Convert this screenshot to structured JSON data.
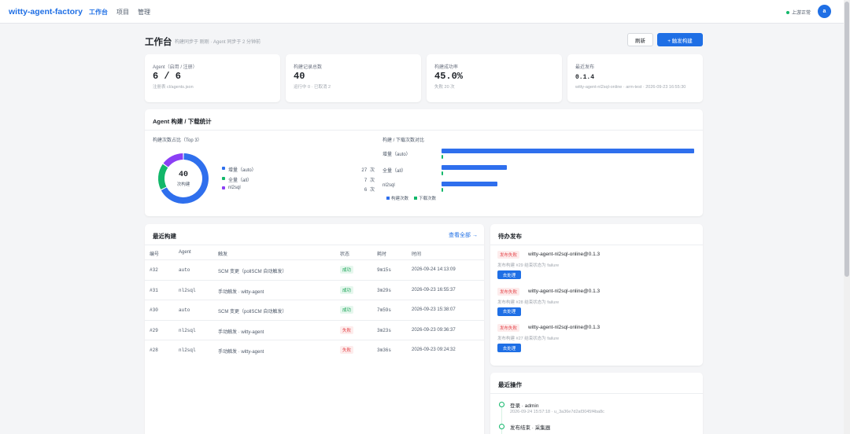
{
  "topbar": {
    "brand": "witty-agent-factory",
    "nav": [
      "工作台",
      "项目",
      "管理"
    ],
    "upstream_status": "上游正常",
    "avatar_letter": "a"
  },
  "header": {
    "title": "工作台",
    "subtitle": "构建同步于 刚刚 · Agent 同步于 2 分钟前",
    "refresh_label": "刷新",
    "trigger_label": "+ 触发构建"
  },
  "stats": [
    {
      "label": "Agent（启用 / 注册）",
      "value": "6 / 6",
      "sub": "注册表 cl/agents.json"
    },
    {
      "label": "构建记录总数",
      "value": "40",
      "sub": "运行中 0 · 已取消 2"
    },
    {
      "label": "构建成功率",
      "value": "45.0%",
      "sub": "失败 20 次"
    },
    {
      "label": "最近发布",
      "value": "0.1.4",
      "sub": "witty-agent-nl2sql-online · arm-test · 2026-09-23 16:55:30"
    }
  ],
  "stats_card": {
    "title": "Agent 构建 / 下载统计",
    "pie_section": "构建次数占比（Top 3）",
    "bar_section": "构建 / 下载次数对比",
    "center_value": "40",
    "center_label": "次构建"
  },
  "chart_data": [
    {
      "type": "pie",
      "title": "构建次数占比（Top 3）",
      "categories": [
        "增量（auto）",
        "全量（all）",
        "nl2sql"
      ],
      "values": [
        27,
        7,
        6
      ],
      "count_labels": [
        "27 次",
        "7 次",
        "6 次"
      ],
      "colors": [
        "#2f6fed",
        "#12b76a",
        "#8b3ff5"
      ],
      "total": 40
    },
    {
      "type": "bar",
      "orientation": "horizontal",
      "title": "构建 / 下载次数对比",
      "categories": [
        "增量（auto）",
        "全量（all）",
        "nl2sql"
      ],
      "series": [
        {
          "name": "构建次数",
          "values": [
            27,
            7,
            6
          ],
          "color": "#2f6fed"
        },
        {
          "name": "下载次数",
          "values": [
            0,
            0,
            0
          ],
          "color": "#12b76a"
        }
      ]
    }
  ],
  "builds": {
    "title": "最近构建",
    "view_all": "查看全部 →",
    "columns": [
      "编号",
      "Agent",
      "触发",
      "状态",
      "耗时",
      "时间"
    ],
    "rows": [
      {
        "id": "#32",
        "agent": "auto",
        "trigger": "SCM 变更（pollSCM 自动触发）",
        "status": "成功",
        "ok": true,
        "duration": "9m15s",
        "time": "2026-09-24 14:13:09"
      },
      {
        "id": "#31",
        "agent": "nl2sql",
        "trigger": "手动触发 · witty-agent",
        "status": "成功",
        "ok": true,
        "duration": "3m29s",
        "time": "2026-09-23 16:55:37"
      },
      {
        "id": "#30",
        "agent": "auto",
        "trigger": "SCM 变更（pollSCM 自动触发）",
        "status": "成功",
        "ok": true,
        "duration": "7m59s",
        "time": "2026-09-23 15:38:07"
      },
      {
        "id": "#29",
        "agent": "nl2sql",
        "trigger": "手动触发 · witty-agent",
        "status": "失败",
        "ok": false,
        "duration": "3m23s",
        "time": "2026-09-23 09:36:37"
      },
      {
        "id": "#28",
        "agent": "nl2sql",
        "trigger": "手动触发 · witty-agent",
        "status": "失败",
        "ok": false,
        "duration": "3m36s",
        "time": "2026-09-23 09:24:32"
      }
    ]
  },
  "pending": {
    "title": "待办发布",
    "items": [
      {
        "badge": "发布失败",
        "name": "witty-agent-nl2sql-online@0.1.3",
        "desc": "发布构建 #29 结束状态为 failure",
        "action": "去处理"
      },
      {
        "badge": "发布失败",
        "name": "witty-agent-nl2sql-online@0.1.3",
        "desc": "发布构建 #28 结束状态为 failure",
        "action": "去处理"
      },
      {
        "badge": "发布失败",
        "name": "witty-agent-nl2sql-online@0.1.3",
        "desc": "发布构建 #27 结束状态为 failure",
        "action": "去处理"
      }
    ]
  },
  "ops": {
    "title": "最近操作",
    "items": [
      {
        "title": "登录 · admin",
        "meta": "2026-09-24 15:57:18 · u_3a36e7d2af3045f4ba8c"
      },
      {
        "title": "发布结束 · 采集器",
        "meta": ""
      }
    ]
  }
}
